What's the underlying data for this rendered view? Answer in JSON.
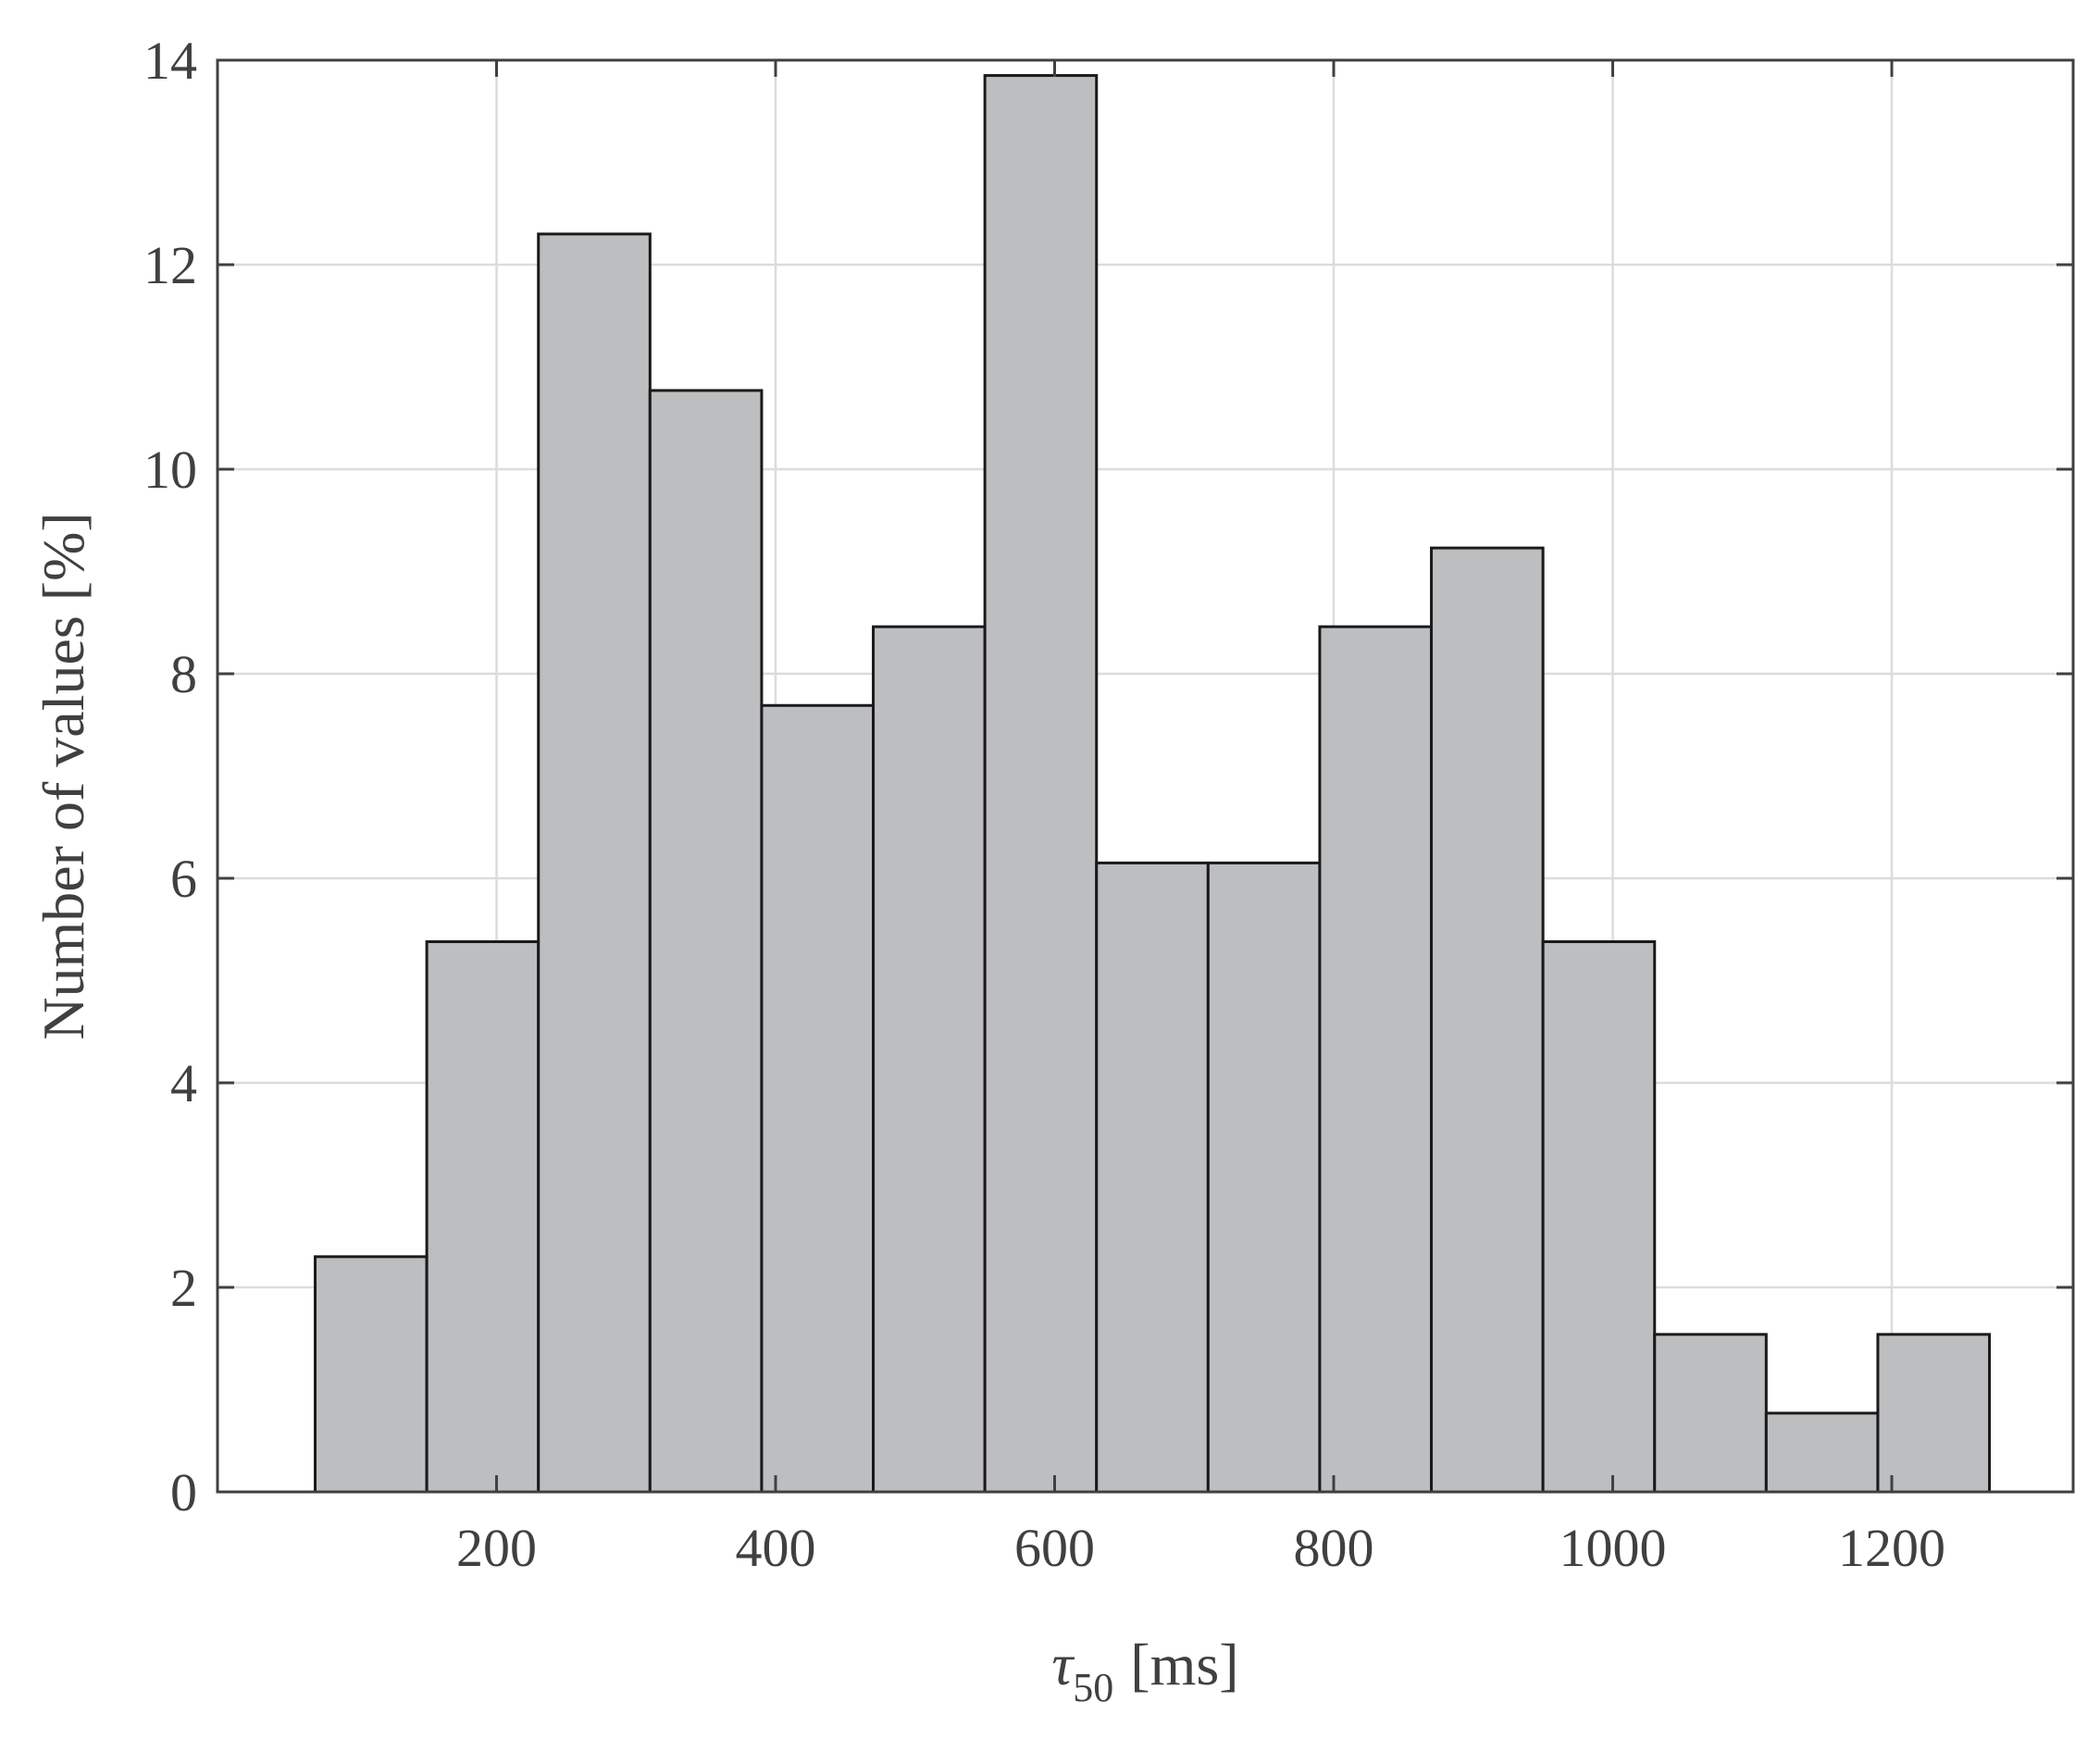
{
  "chart_data": {
    "type": "bar",
    "subtype": "histogram",
    "bin_edges": [
      70,
      150,
      230,
      310,
      390,
      470,
      550,
      630,
      710,
      790,
      870,
      950,
      1030,
      1110,
      1190,
      1270
    ],
    "values": [
      2.3,
      5.38,
      12.3,
      10.77,
      7.69,
      8.46,
      13.85,
      6.15,
      6.15,
      8.46,
      9.23,
      5.38,
      1.54,
      0.77,
      1.54
    ],
    "xlabel_symbol": "τ",
    "xlabel_subscript": "50",
    "xlabel_unit": "[ms]",
    "ylabel": "Number of values [%]",
    "xlim": [
      0,
      1330
    ],
    "ylim": [
      0,
      14
    ],
    "xticks": [
      200,
      400,
      600,
      800,
      1000,
      1200
    ],
    "yticks": [
      0,
      2,
      4,
      6,
      8,
      10,
      12,
      14
    ],
    "grid": true,
    "bar_color": "#bdbec0",
    "edge_color": "#1a1a1a"
  }
}
